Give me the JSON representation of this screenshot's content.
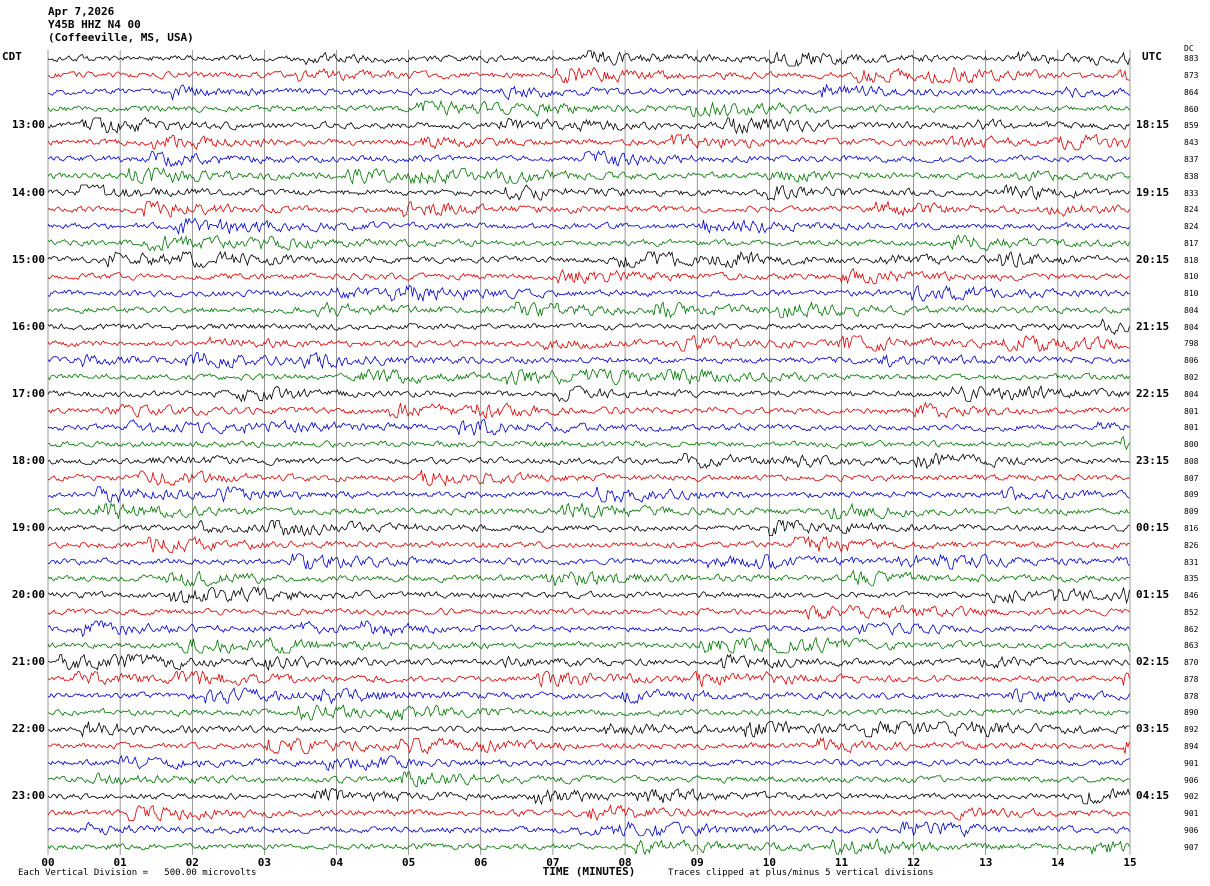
{
  "header": {
    "date": "Apr 7,2026",
    "station": "Y45B HHZ N4 00",
    "location": "(Coffeeville, MS, USA)"
  },
  "axes": {
    "left_label": "CDT",
    "right_label": "UTC",
    "dc_label": "DC",
    "x_axis_label": "TIME (MINUTES)",
    "x_ticks": [
      "00",
      "01",
      "02",
      "03",
      "04",
      "05",
      "06",
      "07",
      "08",
      "09",
      "10",
      "11",
      "12",
      "13",
      "14",
      "15"
    ]
  },
  "footer": {
    "left": "Each Vertical Division =   500.00 microvolts",
    "right": "Traces clipped at plus/minus 5 vertical divisions"
  },
  "chart_data": {
    "type": "line",
    "title": "Helicorder seismogram, station Y45B HHZ N4 00, Coffeeville, MS, USA, Apr 7,2026",
    "description": "48 consecutive 15-minute seismic trace rows (4 rows per hour) of ambient noise; trace colors cycle black, red, blue, green; traces clipped at plus/minus 5 vertical divisions; each vertical division = 500.00 microvolts.",
    "rows": 48,
    "traces_per_hour": 4,
    "minutes_per_row": 15,
    "x_range_minutes": [
      0,
      15
    ],
    "trace_colors": [
      "#000000",
      "#dd0000",
      "#0000cc",
      "#007700"
    ],
    "grid": true,
    "left_times": [
      "13:00",
      "14:00",
      "15:00",
      "16:00",
      "17:00",
      "18:00",
      "19:00",
      "20:00",
      "21:00",
      "22:00",
      "23:00"
    ],
    "right_times": [
      "18:15",
      "19:15",
      "20:15",
      "21:15",
      "22:15",
      "23:15",
      "00:15",
      "01:15",
      "02:15",
      "03:15",
      "04:15"
    ],
    "dc_values": [
      883,
      873,
      864,
      860,
      859,
      843,
      837,
      838,
      833,
      824,
      824,
      817,
      818,
      810,
      810,
      804,
      804,
      798,
      806,
      802,
      804,
      801,
      801,
      800,
      808,
      807,
      809,
      809,
      816,
      826,
      831,
      835,
      846,
      852,
      862,
      863,
      870,
      878,
      878,
      890,
      892,
      894,
      901,
      906,
      902,
      901,
      906,
      907
    ]
  }
}
